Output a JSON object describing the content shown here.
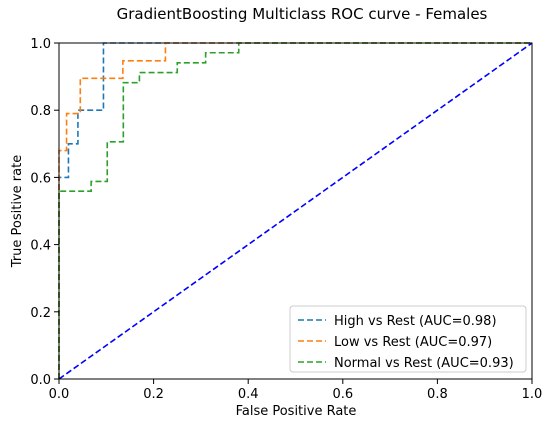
{
  "chart_data": {
    "type": "line",
    "title": "GradientBoosting Multiclass ROC curve - Females",
    "xlabel": "False Positive Rate",
    "ylabel": "True Positive rate",
    "xlim": [
      0.0,
      1.0
    ],
    "ylim": [
      0.0,
      1.0
    ],
    "xticks": [
      "0.0",
      "0.2",
      "0.4",
      "0.6",
      "0.8",
      "1.0"
    ],
    "yticks": [
      "0.0",
      "0.2",
      "0.4",
      "0.6",
      "0.8",
      "1.0"
    ],
    "grid": false,
    "legend_position": "lower-right",
    "series": [
      {
        "name": "High vs Rest (AUC=0.98)",
        "color": "#1f77b4",
        "style": "dashed",
        "x": [
          0.0,
          0.0,
          0.02,
          0.02,
          0.04,
          0.04,
          0.094,
          0.094,
          1.0
        ],
        "y": [
          0.0,
          0.6,
          0.6,
          0.7,
          0.7,
          0.8,
          0.8,
          1.0,
          1.0
        ]
      },
      {
        "name": "Low vs Rest (AUC=0.97)",
        "color": "#ff7f0e",
        "style": "dashed",
        "x": [
          0.0,
          0.0,
          0.016,
          0.016,
          0.045,
          0.045,
          0.135,
          0.135,
          0.225,
          0.225,
          0.38,
          1.0
        ],
        "y": [
          0.0,
          0.68,
          0.68,
          0.79,
          0.79,
          0.895,
          0.895,
          0.947,
          0.947,
          1.0,
          1.0,
          1.0
        ]
      },
      {
        "name": "Normal vs Rest (AUC=0.93)",
        "color": "#2ca02c",
        "style": "dashed",
        "x": [
          0.0,
          0.0,
          0.068,
          0.068,
          0.102,
          0.102,
          0.136,
          0.136,
          0.17,
          0.17,
          0.25,
          0.25,
          0.31,
          0.31,
          0.38,
          0.38,
          1.0
        ],
        "y": [
          0.0,
          0.559,
          0.559,
          0.588,
          0.588,
          0.706,
          0.706,
          0.882,
          0.882,
          0.912,
          0.912,
          0.941,
          0.941,
          0.971,
          0.971,
          1.0,
          1.0
        ]
      },
      {
        "name": "",
        "color": "#0000ff",
        "style": "dashed",
        "x": [
          0.0,
          1.0
        ],
        "y": [
          0.0,
          1.0
        ]
      }
    ]
  }
}
